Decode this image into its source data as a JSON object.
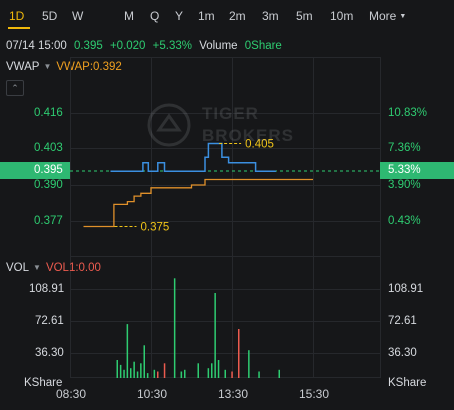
{
  "timeframes": [
    "1D",
    "5D",
    "W",
    "M",
    "Q",
    "Y",
    "1m",
    "2m",
    "3m",
    "5m",
    "10m",
    "More"
  ],
  "active_timeframe": "1D",
  "quote": {
    "datetime": "07/14 15:00",
    "price": "0.395",
    "change": "+0.020",
    "change_pct": "+5.33%",
    "volume_label": "Volume",
    "volume_value": "0Share"
  },
  "vwap_indicator": {
    "name": "VWAP",
    "value_label": "VWAP:0.392"
  },
  "volume_indicator": {
    "name": "VOL",
    "value_label": "VOL1:0.00"
  },
  "watermark": {
    "line1": "TIGER",
    "line2": "BROKERS"
  },
  "colors": {
    "background": "#161719",
    "up": "#2ecc71",
    "down": "#ec5b4f",
    "price_line": "#3b8fe0",
    "vwap_line": "#e0902a",
    "active_tab": "#f0b90b"
  },
  "chart_data": [
    {
      "type": "line",
      "title": "",
      "series": [
        {
          "name": "Price",
          "x": [
            "09:30",
            "09:55",
            "10:10",
            "10:18",
            "10:22",
            "10:26",
            "10:35",
            "10:40",
            "10:45",
            "10:50",
            "10:55",
            "11:00",
            "11:45",
            "11:50",
            "11:55",
            "12:05",
            "12:15",
            "12:25",
            "12:50",
            "13:00",
            "13:05",
            "13:25",
            "13:30",
            "13:35"
          ],
          "values": [
            0.395,
            0.395,
            0.395,
            0.398,
            0.398,
            0.395,
            0.395,
            0.398,
            0.398,
            0.395,
            0.395,
            0.395,
            0.395,
            0.4,
            0.405,
            0.405,
            0.4,
            0.398,
            0.398,
            0.398,
            0.395,
            0.395,
            0.395,
            0.395
          ]
        },
        {
          "name": "VWAP",
          "x": [
            "08:50",
            "09:30",
            "09:35",
            "09:55",
            "10:05",
            "10:15",
            "10:30",
            "10:45",
            "11:00",
            "11:30",
            "11:45",
            "11:50",
            "12:00",
            "12:30",
            "13:00",
            "13:30",
            "14:00",
            "14:30"
          ],
          "values": [
            0.375,
            0.375,
            0.383,
            0.384,
            0.386,
            0.387,
            0.389,
            0.389,
            0.389,
            0.39,
            0.39,
            0.392,
            0.392,
            0.392,
            0.392,
            0.392,
            0.392,
            0.392
          ]
        }
      ],
      "annotations": [
        {
          "text": "0.405",
          "x": "12:05",
          "y": 0.405
        },
        {
          "text": "0.375",
          "x": "09:30",
          "y": 0.375
        }
      ],
      "left_ticks": [
        "0.416",
        "0.403",
        "0.390",
        "0.377"
      ],
      "right_ticks": [
        "10.83%",
        "7.36%",
        "3.90%",
        "0.43%"
      ],
      "current_price_label": "0.395",
      "current_pct_label": "5.33%",
      "reference_price": 0.375,
      "ylim": [
        0.37,
        0.422
      ]
    },
    {
      "type": "bar",
      "title": "",
      "unit": "KShare",
      "ticks": [
        "108.91",
        "72.61",
        "36.30"
      ],
      "ylim": [
        0,
        130
      ],
      "x_ticks": [
        "08:30",
        "10:30",
        "13:30",
        "15:30"
      ],
      "bars": [
        {
          "time": "09:40",
          "value": 22,
          "dir": "up"
        },
        {
          "time": "09:45",
          "value": 16,
          "dir": "up"
        },
        {
          "time": "09:50",
          "value": 10,
          "dir": "up"
        },
        {
          "time": "09:55",
          "value": 66,
          "dir": "up"
        },
        {
          "time": "10:00",
          "value": 12,
          "dir": "up"
        },
        {
          "time": "10:05",
          "value": 20,
          "dir": "up"
        },
        {
          "time": "10:10",
          "value": 8,
          "dir": "up"
        },
        {
          "time": "10:15",
          "value": 18,
          "dir": "up"
        },
        {
          "time": "10:20",
          "value": 40,
          "dir": "up"
        },
        {
          "time": "10:25",
          "value": 6,
          "dir": "up"
        },
        {
          "time": "10:35",
          "value": 10,
          "dir": "up"
        },
        {
          "time": "10:40",
          "value": 8,
          "dir": "down"
        },
        {
          "time": "10:50",
          "value": 18,
          "dir": "down"
        },
        {
          "time": "11:05",
          "value": 122,
          "dir": "up"
        },
        {
          "time": "11:15",
          "value": 8,
          "dir": "up"
        },
        {
          "time": "11:20",
          "value": 10,
          "dir": "up"
        },
        {
          "time": "11:40",
          "value": 18,
          "dir": "up"
        },
        {
          "time": "11:55",
          "value": 12,
          "dir": "up"
        },
        {
          "time": "12:00",
          "value": 18,
          "dir": "up"
        },
        {
          "time": "12:05",
          "value": 104,
          "dir": "up"
        },
        {
          "time": "12:10",
          "value": 22,
          "dir": "up"
        },
        {
          "time": "12:20",
          "value": 10,
          "dir": "up"
        },
        {
          "time": "12:30",
          "value": 8,
          "dir": "down"
        },
        {
          "time": "12:40",
          "value": 60,
          "dir": "down"
        },
        {
          "time": "12:55",
          "value": 34,
          "dir": "up"
        },
        {
          "time": "13:10",
          "value": 8,
          "dir": "up"
        },
        {
          "time": "13:40",
          "value": 10,
          "dir": "up"
        }
      ]
    }
  ]
}
